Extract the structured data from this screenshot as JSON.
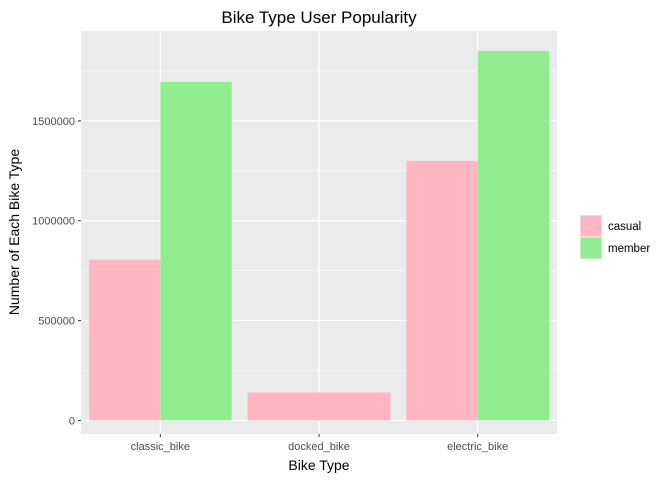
{
  "chart_data": {
    "type": "bar",
    "title": "Bike Type User Popularity",
    "xlabel": "Bike Type",
    "ylabel": "Number of Each Bike Type",
    "categories": [
      "classic_bike",
      "docked_bike",
      "electric_bike"
    ],
    "series": [
      {
        "name": "casual",
        "color": "#FFB6C1",
        "values": [
          805000,
          140000,
          1300000
        ]
      },
      {
        "name": "member",
        "color": "#90EE90",
        "values": [
          1695000,
          null,
          1850000
        ]
      }
    ],
    "ylim": [
      -68000,
      1950000
    ],
    "yticks": [
      0,
      500000,
      1000000,
      1500000
    ],
    "ytick_labels": [
      "0",
      "500000",
      "1000000",
      "1500000"
    ],
    "grid": true,
    "panel_background": "#EBEBEB",
    "legend_position": "right"
  }
}
